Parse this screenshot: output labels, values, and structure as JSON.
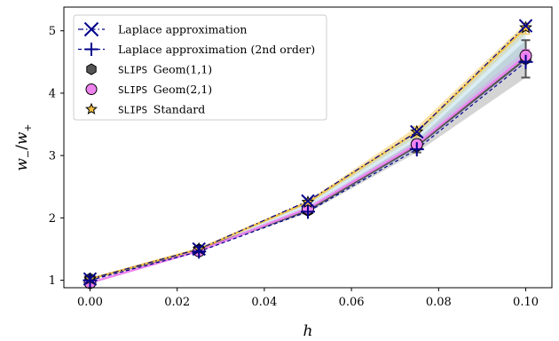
{
  "chart_data": {
    "type": "line",
    "title": "",
    "xlabel": "h",
    "ylabel_parts": {
      "w": "w",
      "minus": "−",
      "slash": "/",
      "plus": "+"
    },
    "xlim": [
      -0.006,
      0.106
    ],
    "ylim": [
      0.88,
      5.38
    ],
    "x": [
      0.0,
      0.025,
      0.05,
      0.075,
      0.1
    ],
    "x_ticks": [
      0.0,
      0.02,
      0.04,
      0.06,
      0.08,
      0.1
    ],
    "x_tick_labels": [
      "0.00",
      "0.02",
      "0.04",
      "0.06",
      "0.08",
      "0.10"
    ],
    "y_ticks": [
      1,
      2,
      3,
      4,
      5
    ],
    "y_tick_labels": [
      "1",
      "2",
      "3",
      "4",
      "5"
    ],
    "grid": false,
    "legend_position": "top-left",
    "series": [
      {
        "name": "Laplace approximation",
        "marker": "x",
        "color": "#00008b",
        "line": "dashdot",
        "values": [
          1.02,
          1.5,
          2.27,
          3.38,
          5.08
        ]
      },
      {
        "name": "Laplace approximation (2nd order)",
        "marker": "plus",
        "color": "#00008b",
        "line": "dashed",
        "values": [
          1.0,
          1.46,
          2.1,
          3.1,
          4.5
        ]
      },
      {
        "name_prefix": "SLIPS",
        "name_suffix": "Geom(1,1)",
        "marker": "hexagon",
        "color": "#555555",
        "edge": "#000000",
        "line": "solid",
        "values": [
          1.02,
          1.49,
          2.12,
          3.15,
          4.55
        ],
        "band_low": [
          1.0,
          1.47,
          2.08,
          3.05,
          4.25
        ],
        "band_high": [
          1.04,
          1.51,
          2.16,
          3.25,
          4.85
        ]
      },
      {
        "name_prefix": "SLIPS",
        "name_suffix": "Geom(2,1)",
        "marker": "circle",
        "color": "#ee82ee",
        "edge": "#000000",
        "line": "solid",
        "values": [
          0.96,
          1.47,
          2.15,
          3.18,
          4.6
        ],
        "band_low": [
          0.94,
          1.45,
          2.11,
          3.12,
          4.5
        ],
        "band_high": [
          0.98,
          1.49,
          2.19,
          3.24,
          4.7
        ]
      },
      {
        "name_prefix": "SLIPS",
        "name_suffix": "Standard",
        "marker": "star",
        "color": "#f5c242",
        "edge": "#000000",
        "line": "solid",
        "values": [
          1.02,
          1.5,
          2.25,
          3.38,
          5.05
        ],
        "band_low": [
          1.0,
          1.48,
          2.22,
          3.3,
          4.95
        ],
        "band_high": [
          1.04,
          1.52,
          2.28,
          3.46,
          5.12
        ]
      }
    ]
  }
}
